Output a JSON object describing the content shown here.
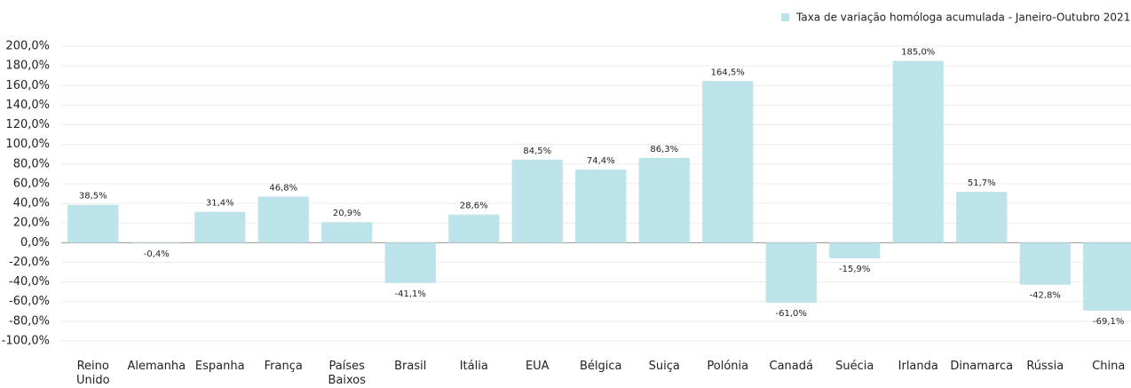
{
  "chart_data": {
    "type": "bar",
    "categories": [
      "Reino Unido",
      "Alemanha",
      "Espanha",
      "França",
      "Países Baixos",
      "Brasil",
      "Itália",
      "EUA",
      "Bélgica",
      "Suiça",
      "Polónia",
      "Canadá",
      "Suécia",
      "Irlanda",
      "Dinamarca",
      "Rússia",
      "China"
    ],
    "series": [
      {
        "name": "Taxa de variação homóloga acumulada - Janeiro-Outubro 2021",
        "color": "#bde3ea",
        "values": [
          38.5,
          -0.4,
          31.4,
          46.8,
          20.9,
          -41.1,
          28.6,
          84.5,
          74.4,
          86.3,
          164.5,
          -61.0,
          -15.9,
          185.0,
          51.7,
          -42.8,
          -69.1
        ],
        "value_labels": [
          "38,5%",
          "-0,4%",
          "31,4%",
          "46,8%",
          "20,9%",
          "-41,1%",
          "28,6%",
          "84,5%",
          "74,4%",
          "86,3%",
          "164,5%",
          "-61,0%",
          "-15,9%",
          "185,0%",
          "51,7%",
          "-42,8%",
          "-69,1%"
        ]
      }
    ],
    "ylim": [
      -100,
      200
    ],
    "yticks": [
      {
        "value": -100,
        "label": "-100,0%"
      },
      {
        "value": -80,
        "label": "-80,0%"
      },
      {
        "value": -60,
        "label": "-60,0%"
      },
      {
        "value": -40,
        "label": "-40,0%"
      },
      {
        "value": -20,
        "label": "-20,0%"
      },
      {
        "value": 0,
        "label": "0,0%"
      },
      {
        "value": 20,
        "label": "20,0%"
      },
      {
        "value": 40,
        "label": "40,0%"
      },
      {
        "value": 60,
        "label": "60,0%"
      },
      {
        "value": 80,
        "label": "80,0%"
      },
      {
        "value": 100,
        "label": "100,0%"
      },
      {
        "value": 120,
        "label": "120,0%"
      },
      {
        "value": 140,
        "label": "140,0%"
      },
      {
        "value": 160,
        "label": "160,0%"
      },
      {
        "value": 180,
        "label": "180,0%"
      },
      {
        "value": 200,
        "label": "200,0%"
      }
    ],
    "grid": true,
    "legend": "top-right"
  }
}
